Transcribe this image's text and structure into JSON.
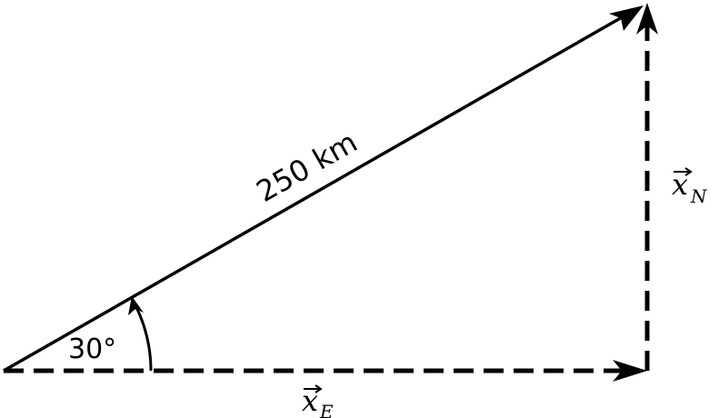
{
  "diagram": {
    "magnitude_label": "250 km",
    "angle_label": "30°",
    "east_component": {
      "symbol": "x",
      "subscript": "E"
    },
    "north_component": {
      "symbol": "x",
      "subscript": "N"
    }
  }
}
